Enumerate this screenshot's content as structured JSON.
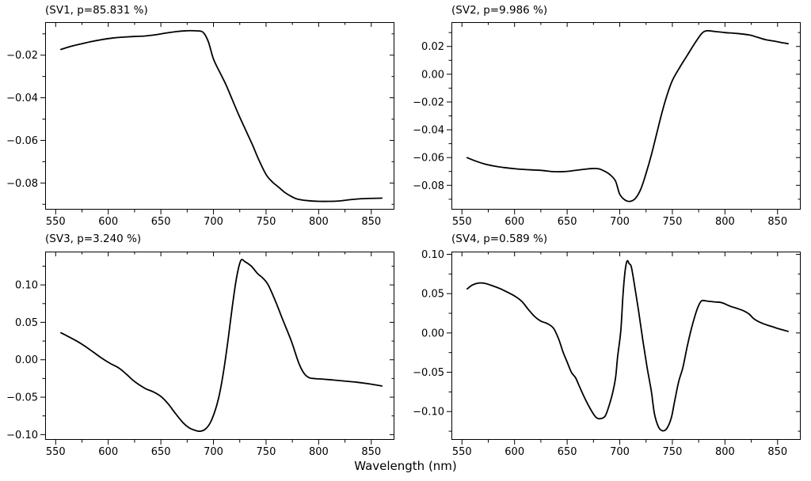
{
  "figure": {
    "xlabel": "Wavelength (nm)",
    "background": "#ffffff",
    "line_color": "#000000",
    "axis_color": "#000000",
    "text_color": "#000000"
  },
  "chart_data": [
    {
      "type": "line",
      "title": "(SV1, p=85.831 %)",
      "series_name": "SV1",
      "percent_variance": 85.831,
      "xlabel": "Wavelength (nm)",
      "xlim": [
        540,
        872
      ],
      "ylim": [
        -0.0925,
        -0.0045
      ],
      "xticks": [
        550,
        600,
        650,
        700,
        750,
        800,
        850
      ],
      "xtick_labels": [
        "550",
        "600",
        "650",
        "700",
        "750",
        "800",
        "850"
      ],
      "yticks": [
        -0.02,
        -0.04,
        -0.06,
        -0.08
      ],
      "ytick_labels": [
        "−0.02",
        "−0.04",
        "−0.06",
        "−0.08"
      ],
      "x_minor_step": 25,
      "y_minor_step": 0.01,
      "x": [
        555,
        565,
        575,
        585,
        595,
        605,
        615,
        625,
        635,
        645,
        655,
        665,
        672,
        678,
        684,
        690,
        695,
        700,
        706,
        712,
        718,
        724,
        730,
        737,
        743,
        750,
        756,
        762,
        768,
        774,
        780,
        790,
        800,
        810,
        820,
        830,
        840,
        850,
        860
      ],
      "y": [
        -0.0173,
        -0.0158,
        -0.0146,
        -0.0135,
        -0.0126,
        -0.0119,
        -0.0115,
        -0.0112,
        -0.011,
        -0.0104,
        -0.0096,
        -0.0089,
        -0.0086,
        -0.0085,
        -0.0086,
        -0.0092,
        -0.0135,
        -0.0218,
        -0.028,
        -0.034,
        -0.041,
        -0.048,
        -0.0545,
        -0.062,
        -0.069,
        -0.076,
        -0.0795,
        -0.082,
        -0.0845,
        -0.0863,
        -0.0876,
        -0.0883,
        -0.0886,
        -0.0886,
        -0.0884,
        -0.0878,
        -0.0874,
        -0.0872,
        -0.0871
      ]
    },
    {
      "type": "line",
      "title": "(SV2, p=9.986 %)",
      "series_name": "SV2",
      "percent_variance": 9.986,
      "xlabel": "Wavelength (nm)",
      "xlim": [
        540,
        872
      ],
      "ylim": [
        -0.0975,
        0.0375
      ],
      "xticks": [
        550,
        600,
        650,
        700,
        750,
        800,
        850
      ],
      "xtick_labels": [
        "550",
        "600",
        "650",
        "700",
        "750",
        "800",
        "850"
      ],
      "yticks": [
        0.02,
        0.0,
        -0.02,
        -0.04,
        -0.06,
        -0.08
      ],
      "ytick_labels": [
        "0.02",
        "0.00",
        "−0.02",
        "−0.04",
        "−0.06",
        "−0.08"
      ],
      "x_minor_step": 25,
      "y_minor_step": 0.01,
      "x": [
        555,
        563,
        571,
        580,
        590,
        600,
        610,
        620,
        628,
        636,
        644,
        652,
        660,
        668,
        674,
        680,
        686,
        691,
        696,
        700,
        705,
        710,
        715,
        720,
        725,
        730,
        735,
        740,
        745,
        750,
        757,
        764,
        771,
        778,
        783,
        790,
        800,
        811,
        823,
        831,
        839,
        847,
        855,
        860
      ],
      "y": [
        -0.0601,
        -0.0625,
        -0.0645,
        -0.066,
        -0.0672,
        -0.068,
        -0.0686,
        -0.069,
        -0.0694,
        -0.0701,
        -0.0702,
        -0.0698,
        -0.069,
        -0.0683,
        -0.0679,
        -0.0681,
        -0.07,
        -0.0725,
        -0.077,
        -0.0864,
        -0.0906,
        -0.0915,
        -0.0893,
        -0.0827,
        -0.0714,
        -0.0582,
        -0.0431,
        -0.028,
        -0.0149,
        -0.0045,
        0.0049,
        0.0134,
        0.0219,
        0.0294,
        0.0313,
        0.0308,
        0.03,
        0.0294,
        0.0283,
        0.0266,
        0.0248,
        0.0238,
        0.0226,
        0.022
      ]
    },
    {
      "type": "line",
      "title": "(SV3, p=3.240 %)",
      "series_name": "SV3",
      "percent_variance": 3.24,
      "xlabel": "Wavelength (nm)",
      "xlim": [
        540,
        872
      ],
      "ylim": [
        -0.107,
        0.1445
      ],
      "xticks": [
        550,
        600,
        650,
        700,
        750,
        800,
        850
      ],
      "xtick_labels": [
        "550",
        "600",
        "650",
        "700",
        "750",
        "800",
        "850"
      ],
      "yticks": [
        0.1,
        0.05,
        0.0,
        -0.05,
        -0.1
      ],
      "ytick_labels": [
        "0.10",
        "0.05",
        "0.00",
        "−0.05",
        "−0.10"
      ],
      "x_minor_step": 25,
      "y_minor_step": 0.025,
      "x": [
        555,
        562,
        570,
        578,
        586,
        594,
        602,
        610,
        617,
        624,
        630,
        636,
        643,
        650,
        657,
        664,
        671,
        677,
        682,
        687,
        692,
        697,
        702,
        706,
        710,
        714,
        718,
        722,
        726,
        730,
        736,
        742,
        747,
        752,
        759,
        766,
        774,
        781,
        786,
        791,
        797,
        805,
        815,
        825,
        835,
        847,
        860
      ],
      "y": [
        0.036,
        0.031,
        0.025,
        0.018,
        0.01,
        0.002,
        -0.005,
        -0.011,
        -0.019,
        -0.028,
        -0.034,
        -0.039,
        -0.043,
        -0.049,
        -0.059,
        -0.072,
        -0.084,
        -0.091,
        -0.094,
        -0.0955,
        -0.093,
        -0.084,
        -0.066,
        -0.044,
        -0.012,
        0.028,
        0.072,
        0.11,
        0.1325,
        0.131,
        0.125,
        0.115,
        0.109,
        0.1,
        0.078,
        0.053,
        0.025,
        -0.004,
        -0.018,
        -0.024,
        -0.0252,
        -0.026,
        -0.0272,
        -0.0285,
        -0.0298,
        -0.032,
        -0.035
      ]
    },
    {
      "type": "line",
      "title": "(SV4, p=0.589 %)",
      "series_name": "SV4",
      "percent_variance": 0.589,
      "xlabel": "Wavelength (nm)",
      "xlim": [
        540,
        872
      ],
      "ylim": [
        -0.136,
        0.1035
      ],
      "xticks": [
        550,
        600,
        650,
        700,
        750,
        800,
        850
      ],
      "xtick_labels": [
        "550",
        "600",
        "650",
        "700",
        "750",
        "800",
        "850"
      ],
      "yticks": [
        0.1,
        0.05,
        0.0,
        -0.05,
        -0.1
      ],
      "ytick_labels": [
        "0.10",
        "0.05",
        "0.00",
        "−0.05",
        "−0.10"
      ],
      "x_minor_step": 25,
      "y_minor_step": 0.025,
      "x": [
        555,
        560,
        566,
        572,
        579,
        586,
        593,
        600,
        607,
        613,
        619,
        625,
        631,
        637,
        642,
        646,
        650,
        654,
        658,
        661,
        665,
        669,
        674,
        678,
        682,
        686,
        689,
        693,
        696,
        698,
        701,
        703,
        705,
        707,
        709,
        711,
        714,
        718,
        722,
        726,
        730,
        733,
        737,
        741,
        745,
        749,
        752,
        756,
        760,
        764,
        768,
        772,
        775,
        778,
        783,
        790,
        797,
        805,
        812,
        818,
        823,
        828,
        836,
        845,
        852,
        860
      ],
      "y": [
        0.056,
        0.061,
        0.0635,
        0.063,
        0.06,
        0.0565,
        0.052,
        0.047,
        0.04,
        0.03,
        0.021,
        0.015,
        0.012,
        0.006,
        -0.008,
        -0.024,
        -0.037,
        -0.05,
        -0.057,
        -0.066,
        -0.078,
        -0.089,
        -0.101,
        -0.108,
        -0.109,
        -0.106,
        -0.096,
        -0.0775,
        -0.057,
        -0.03,
        0.003,
        0.047,
        0.078,
        0.0915,
        0.088,
        0.084,
        0.061,
        0.027,
        -0.01,
        -0.044,
        -0.074,
        -0.103,
        -0.12,
        -0.1245,
        -0.121,
        -0.108,
        -0.088,
        -0.062,
        -0.044,
        -0.018,
        0.005,
        0.024,
        0.035,
        0.041,
        0.0405,
        0.0395,
        0.0385,
        0.034,
        0.031,
        0.028,
        0.024,
        0.0175,
        0.012,
        0.008,
        0.005,
        0.002
      ]
    }
  ]
}
